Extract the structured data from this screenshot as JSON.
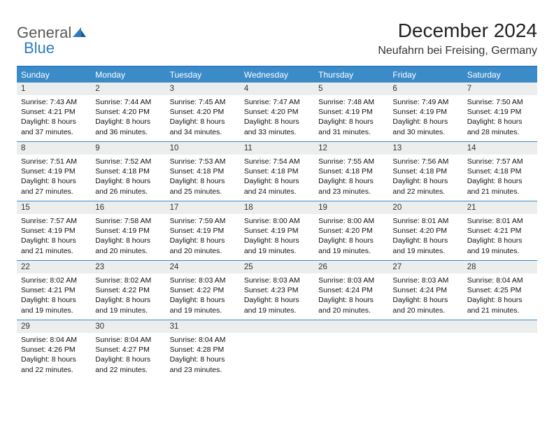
{
  "logo": {
    "text1": "General",
    "text2": "Blue"
  },
  "header": {
    "title": "December 2024",
    "location": "Neufahrn bei Freising, Germany"
  },
  "colors": {
    "accent": "#3b8bc9",
    "accent_border": "#2d7cc1",
    "daynum_bg": "#eceded",
    "text": "#111111",
    "bg": "#ffffff"
  },
  "typography": {
    "title_fontsize_pt": 21,
    "location_fontsize_pt": 12,
    "dayheader_fontsize_pt": 9,
    "body_fontsize_pt": 8,
    "font_family": "Arial"
  },
  "calendar": {
    "type": "table",
    "columns": [
      "Sunday",
      "Monday",
      "Tuesday",
      "Wednesday",
      "Thursday",
      "Friday",
      "Saturday"
    ],
    "col_count": 7,
    "row_count": 5,
    "days": [
      {
        "n": "1",
        "sunrise": "7:43 AM",
        "sunset": "4:21 PM",
        "daylight": "8 hours and 37 minutes."
      },
      {
        "n": "2",
        "sunrise": "7:44 AM",
        "sunset": "4:20 PM",
        "daylight": "8 hours and 36 minutes."
      },
      {
        "n": "3",
        "sunrise": "7:45 AM",
        "sunset": "4:20 PM",
        "daylight": "8 hours and 34 minutes."
      },
      {
        "n": "4",
        "sunrise": "7:47 AM",
        "sunset": "4:20 PM",
        "daylight": "8 hours and 33 minutes."
      },
      {
        "n": "5",
        "sunrise": "7:48 AM",
        "sunset": "4:19 PM",
        "daylight": "8 hours and 31 minutes."
      },
      {
        "n": "6",
        "sunrise": "7:49 AM",
        "sunset": "4:19 PM",
        "daylight": "8 hours and 30 minutes."
      },
      {
        "n": "7",
        "sunrise": "7:50 AM",
        "sunset": "4:19 PM",
        "daylight": "8 hours and 28 minutes."
      },
      {
        "n": "8",
        "sunrise": "7:51 AM",
        "sunset": "4:19 PM",
        "daylight": "8 hours and 27 minutes."
      },
      {
        "n": "9",
        "sunrise": "7:52 AM",
        "sunset": "4:18 PM",
        "daylight": "8 hours and 26 minutes."
      },
      {
        "n": "10",
        "sunrise": "7:53 AM",
        "sunset": "4:18 PM",
        "daylight": "8 hours and 25 minutes."
      },
      {
        "n": "11",
        "sunrise": "7:54 AM",
        "sunset": "4:18 PM",
        "daylight": "8 hours and 24 minutes."
      },
      {
        "n": "12",
        "sunrise": "7:55 AM",
        "sunset": "4:18 PM",
        "daylight": "8 hours and 23 minutes."
      },
      {
        "n": "13",
        "sunrise": "7:56 AM",
        "sunset": "4:18 PM",
        "daylight": "8 hours and 22 minutes."
      },
      {
        "n": "14",
        "sunrise": "7:57 AM",
        "sunset": "4:18 PM",
        "daylight": "8 hours and 21 minutes."
      },
      {
        "n": "15",
        "sunrise": "7:57 AM",
        "sunset": "4:19 PM",
        "daylight": "8 hours and 21 minutes."
      },
      {
        "n": "16",
        "sunrise": "7:58 AM",
        "sunset": "4:19 PM",
        "daylight": "8 hours and 20 minutes."
      },
      {
        "n": "17",
        "sunrise": "7:59 AM",
        "sunset": "4:19 PM",
        "daylight": "8 hours and 20 minutes."
      },
      {
        "n": "18",
        "sunrise": "8:00 AM",
        "sunset": "4:19 PM",
        "daylight": "8 hours and 19 minutes."
      },
      {
        "n": "19",
        "sunrise": "8:00 AM",
        "sunset": "4:20 PM",
        "daylight": "8 hours and 19 minutes."
      },
      {
        "n": "20",
        "sunrise": "8:01 AM",
        "sunset": "4:20 PM",
        "daylight": "8 hours and 19 minutes."
      },
      {
        "n": "21",
        "sunrise": "8:01 AM",
        "sunset": "4:21 PM",
        "daylight": "8 hours and 19 minutes."
      },
      {
        "n": "22",
        "sunrise": "8:02 AM",
        "sunset": "4:21 PM",
        "daylight": "8 hours and 19 minutes."
      },
      {
        "n": "23",
        "sunrise": "8:02 AM",
        "sunset": "4:22 PM",
        "daylight": "8 hours and 19 minutes."
      },
      {
        "n": "24",
        "sunrise": "8:03 AM",
        "sunset": "4:22 PM",
        "daylight": "8 hours and 19 minutes."
      },
      {
        "n": "25",
        "sunrise": "8:03 AM",
        "sunset": "4:23 PM",
        "daylight": "8 hours and 19 minutes."
      },
      {
        "n": "26",
        "sunrise": "8:03 AM",
        "sunset": "4:24 PM",
        "daylight": "8 hours and 20 minutes."
      },
      {
        "n": "27",
        "sunrise": "8:03 AM",
        "sunset": "4:24 PM",
        "daylight": "8 hours and 20 minutes."
      },
      {
        "n": "28",
        "sunrise": "8:04 AM",
        "sunset": "4:25 PM",
        "daylight": "8 hours and 21 minutes."
      },
      {
        "n": "29",
        "sunrise": "8:04 AM",
        "sunset": "4:26 PM",
        "daylight": "8 hours and 22 minutes."
      },
      {
        "n": "30",
        "sunrise": "8:04 AM",
        "sunset": "4:27 PM",
        "daylight": "8 hours and 22 minutes."
      },
      {
        "n": "31",
        "sunrise": "8:04 AM",
        "sunset": "4:28 PM",
        "daylight": "8 hours and 23 minutes."
      }
    ],
    "labels": {
      "sunrise_prefix": "Sunrise: ",
      "sunset_prefix": "Sunset: ",
      "daylight_prefix": "Daylight: "
    },
    "trailing_empty_cells": 4
  }
}
